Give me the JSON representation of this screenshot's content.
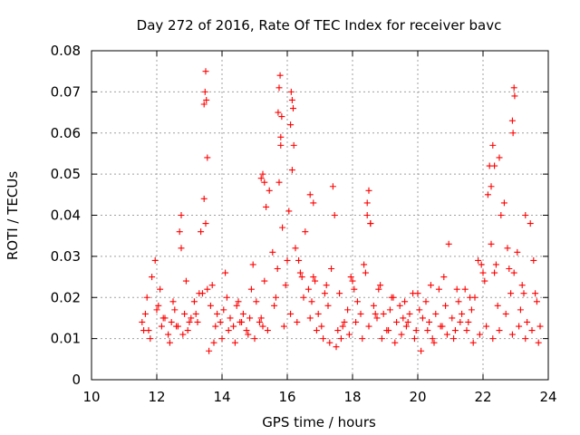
{
  "chart_data": {
    "type": "scatter",
    "title": "Day 272 of 2016, Rate Of TEC Index for receiver bavc",
    "xlabel": "GPS time / hours",
    "ylabel": "ROTI / TECUs",
    "xlim": [
      10,
      24
    ],
    "ylim": [
      0,
      0.08
    ],
    "x_ticks": [
      10,
      12,
      14,
      16,
      18,
      20,
      22,
      24
    ],
    "x_tick_labels": [
      "10",
      "12",
      "14",
      "16",
      "18",
      "20",
      "22",
      "24"
    ],
    "y_ticks": [
      0,
      0.01,
      0.02,
      0.03,
      0.04,
      0.05,
      0.06,
      0.07,
      0.08
    ],
    "y_tick_labels": [
      "0",
      "0.01",
      "0.02",
      "0.03",
      "0.04",
      "0.05",
      "0.06",
      "0.07",
      "0.08"
    ],
    "grid": true,
    "marker": "+",
    "color": "#ff0000",
    "series": [
      {
        "name": "ROTI",
        "x": [
          11.55,
          11.65,
          11.75,
          11.85,
          11.95,
          12.05,
          12.15,
          12.25,
          12.35,
          12.45,
          12.55,
          12.65,
          12.75,
          12.85,
          12.95,
          13.05,
          13.15,
          13.25,
          13.35,
          13.45,
          13.5,
          13.55,
          13.65,
          13.75,
          13.85,
          13.95,
          14.05,
          14.15,
          14.25,
          14.35,
          14.45,
          14.55,
          14.65,
          14.75,
          14.85,
          14.95,
          15.05,
          15.15,
          15.25,
          15.35,
          15.45,
          15.55,
          15.65,
          15.75,
          15.8,
          15.85,
          15.95,
          16.05,
          16.15,
          16.25,
          16.35,
          16.45,
          16.55,
          16.65,
          16.75,
          16.85,
          16.95,
          17.05,
          17.15,
          17.25,
          17.35,
          17.45,
          17.55,
          17.65,
          17.75,
          17.85,
          17.95,
          18.05,
          18.15,
          18.25,
          18.35,
          18.45,
          18.55,
          18.65,
          18.75,
          18.85,
          18.95,
          19.05,
          19.15,
          19.25,
          19.35,
          19.45,
          19.55,
          19.65,
          19.75,
          19.85,
          19.95,
          20.05,
          20.15,
          20.25,
          20.35,
          20.45,
          20.55,
          20.65,
          20.75,
          20.85,
          20.95,
          21.05,
          21.15,
          21.25,
          21.35,
          21.45,
          21.55,
          21.65,
          21.75,
          21.85,
          21.95,
          22.05,
          22.15,
          22.25,
          22.35,
          22.45,
          22.55,
          22.65,
          22.75,
          22.85,
          22.95,
          23.05,
          23.15,
          23.25,
          23.35,
          23.45,
          23.55,
          23.65,
          23.75,
          11.6,
          11.8,
          12.0,
          12.2,
          12.4,
          12.6,
          12.8,
          13.0,
          13.2,
          13.4,
          13.6,
          13.8,
          14.0,
          14.2,
          14.4,
          14.6,
          14.8,
          15.0,
          15.2,
          15.4,
          15.6,
          15.9,
          16.1,
          16.3,
          16.5,
          16.7,
          16.9,
          17.1,
          17.3,
          17.5,
          17.7,
          17.9,
          18.1,
          18.3,
          18.5,
          18.7,
          18.9,
          19.1,
          19.3,
          19.5,
          19.7,
          19.9,
          20.1,
          20.3,
          20.5,
          20.7,
          20.9,
          21.1,
          21.3,
          21.5,
          21.7,
          21.9,
          22.1,
          22.3,
          22.5,
          22.7,
          22.9,
          23.1,
          23.3,
          23.5,
          23.7,
          11.7,
          12.1,
          12.5,
          12.9,
          13.3,
          13.7,
          14.1,
          14.5,
          14.9,
          15.3,
          15.7,
          16.0,
          16.4,
          16.8,
          17.2,
          17.6,
          18.0,
          18.4,
          18.8,
          19.2,
          19.6,
          20.0,
          20.4,
          20.8,
          21.2,
          21.6,
          22.0,
          22.4,
          22.8,
          23.2,
          23.6,
          13.45,
          13.48,
          13.5,
          13.52,
          13.55,
          15.72,
          15.75,
          15.78,
          15.8,
          15.83,
          16.1,
          16.15,
          16.18,
          16.2,
          16.12,
          22.9,
          22.92,
          22.95,
          22.97,
          22.3,
          22.35,
          15.2,
          15.25,
          15.3,
          18.5,
          18.55,
          18.45,
          17.4,
          16.7,
          16.8,
          22.5,
          23.3,
          12.7,
          12.75,
          22.2,
          22.25
        ],
        "y": [
          0.014,
          0.016,
          0.012,
          0.025,
          0.029,
          0.018,
          0.013,
          0.015,
          0.011,
          0.014,
          0.017,
          0.013,
          0.032,
          0.016,
          0.012,
          0.015,
          0.019,
          0.014,
          0.036,
          0.044,
          0.038,
          0.022,
          0.018,
          0.009,
          0.016,
          0.014,
          0.017,
          0.02,
          0.015,
          0.013,
          0.018,
          0.014,
          0.016,
          0.012,
          0.015,
          0.028,
          0.019,
          0.014,
          0.013,
          0.042,
          0.046,
          0.031,
          0.02,
          0.048,
          0.057,
          0.037,
          0.023,
          0.041,
          0.051,
          0.032,
          0.029,
          0.025,
          0.036,
          0.022,
          0.019,
          0.024,
          0.016,
          0.013,
          0.021,
          0.018,
          0.027,
          0.04,
          0.012,
          0.01,
          0.014,
          0.017,
          0.025,
          0.022,
          0.019,
          0.016,
          0.028,
          0.04,
          0.038,
          0.018,
          0.015,
          0.023,
          0.016,
          0.012,
          0.017,
          0.02,
          0.014,
          0.018,
          0.015,
          0.013,
          0.016,
          0.021,
          0.012,
          0.017,
          0.015,
          0.019,
          0.014,
          0.01,
          0.016,
          0.022,
          0.013,
          0.018,
          0.033,
          0.015,
          0.012,
          0.019,
          0.016,
          0.022,
          0.014,
          0.017,
          0.02,
          0.029,
          0.028,
          0.024,
          0.045,
          0.033,
          0.026,
          0.018,
          0.04,
          0.043,
          0.032,
          0.021,
          0.026,
          0.031,
          0.017,
          0.021,
          0.014,
          0.038,
          0.029,
          0.019,
          0.013,
          0.012,
          0.01,
          0.017,
          0.015,
          0.009,
          0.013,
          0.011,
          0.014,
          0.016,
          0.021,
          0.007,
          0.013,
          0.01,
          0.012,
          0.009,
          0.014,
          0.011,
          0.01,
          0.015,
          0.012,
          0.018,
          0.013,
          0.016,
          0.014,
          0.02,
          0.015,
          0.012,
          0.01,
          0.009,
          0.008,
          0.013,
          0.011,
          0.014,
          0.01,
          0.013,
          0.016,
          0.01,
          0.012,
          0.009,
          0.011,
          0.014,
          0.01,
          0.007,
          0.012,
          0.009,
          0.013,
          0.011,
          0.01,
          0.014,
          0.012,
          0.009,
          0.011,
          0.013,
          0.01,
          0.012,
          0.016,
          0.011,
          0.013,
          0.01,
          0.012,
          0.009,
          0.02,
          0.022,
          0.019,
          0.024,
          0.021,
          0.023,
          0.026,
          0.019,
          0.022,
          0.024,
          0.027,
          0.029,
          0.026,
          0.025,
          0.023,
          0.021,
          0.024,
          0.026,
          0.022,
          0.02,
          0.019,
          0.021,
          0.023,
          0.025,
          0.022,
          0.02,
          0.026,
          0.028,
          0.027,
          0.023,
          0.021,
          0.067,
          0.07,
          0.075,
          0.068,
          0.054,
          0.065,
          0.071,
          0.074,
          0.059,
          0.064,
          0.062,
          0.068,
          0.066,
          0.057,
          0.07,
          0.063,
          0.06,
          0.071,
          0.069,
          0.057,
          0.052,
          0.049,
          0.05,
          0.048,
          0.046,
          0.038,
          0.043,
          0.047,
          0.045,
          0.043,
          0.054,
          0.04,
          0.036,
          0.04,
          0.052,
          0.047
        ]
      }
    ]
  }
}
